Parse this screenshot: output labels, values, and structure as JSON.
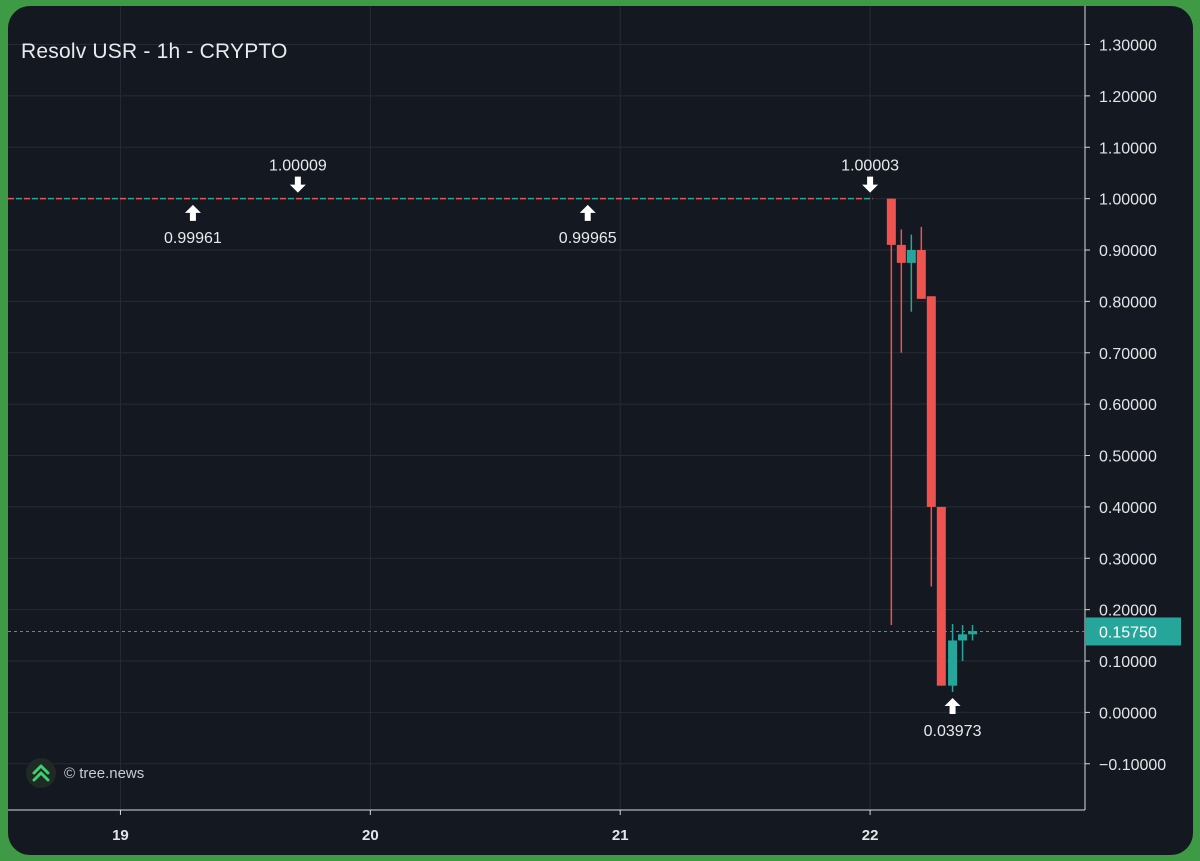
{
  "chart_data": {
    "type": "candlestick",
    "title": "Resolv USR - 1h - CRYPTO",
    "y_ticks": [
      "1.30000",
      "1.20000",
      "1.10000",
      "1.00000",
      "0.90000",
      "0.80000",
      "0.70000",
      "0.60000",
      "0.50000",
      "0.40000",
      "0.30000",
      "0.20000",
      "0.10000",
      "0.00000",
      "−0.10000"
    ],
    "y_tick_values": [
      1.3,
      1.2,
      1.1,
      1.0,
      0.9,
      0.8,
      0.7,
      0.6,
      0.5,
      0.4,
      0.3,
      0.2,
      0.1,
      0.0,
      -0.1
    ],
    "x_ticks": [
      "19",
      "20",
      "21",
      "22"
    ],
    "x_tick_values": [
      19,
      20,
      21,
      22
    ],
    "xlim": [
      18.55,
      22.86
    ],
    "ylim": [
      -0.19,
      1.375
    ],
    "flat_line": {
      "from": 18.55,
      "to": 22.01,
      "value": 1.0
    },
    "candles": [
      {
        "x": 22.085,
        "open": 1.0,
        "high": 1.0,
        "low": 0.17,
        "close": 0.91
      },
      {
        "x": 22.125,
        "open": 0.91,
        "high": 0.94,
        "low": 0.7,
        "close": 0.875
      },
      {
        "x": 22.165,
        "open": 0.875,
        "high": 0.93,
        "low": 0.78,
        "close": 0.9
      },
      {
        "x": 22.205,
        "open": 0.9,
        "high": 0.945,
        "low": 0.805,
        "close": 0.805
      },
      {
        "x": 22.245,
        "open": 0.81,
        "high": 0.81,
        "low": 0.245,
        "close": 0.4
      },
      {
        "x": 22.285,
        "open": 0.4,
        "high": 0.4,
        "low": 0.052,
        "close": 0.052
      },
      {
        "x": 22.33,
        "open": 0.052,
        "high": 0.172,
        "low": 0.0397,
        "close": 0.14
      },
      {
        "x": 22.37,
        "open": 0.14,
        "high": 0.17,
        "low": 0.1,
        "close": 0.152
      },
      {
        "x": 22.41,
        "open": 0.152,
        "high": 0.17,
        "low": 0.14,
        "close": 0.158
      }
    ],
    "last_price": {
      "label": "0.15750",
      "value": 0.1575
    },
    "annotations": [
      {
        "label": "1.00009",
        "x": 19.71,
        "value": 1.00009,
        "direction": "down"
      },
      {
        "label": "0.99961",
        "x": 19.29,
        "value": 0.99961,
        "direction": "up"
      },
      {
        "label": "0.99965",
        "x": 20.87,
        "value": 0.99965,
        "direction": "up"
      },
      {
        "label": "1.00003",
        "x": 22.0,
        "value": 1.00003,
        "direction": "down"
      },
      {
        "label": "0.03973",
        "x": 22.33,
        "value": 0.03973,
        "direction": "up"
      }
    ],
    "grid": true,
    "colors": {
      "up": "#26a69a",
      "down": "#ef5350",
      "background": "#141820",
      "grid": "#262b36",
      "last_price_badge": "#26a69a"
    }
  },
  "watermark": {
    "text": "© tree.news",
    "icon": "chevrons-up-icon"
  }
}
